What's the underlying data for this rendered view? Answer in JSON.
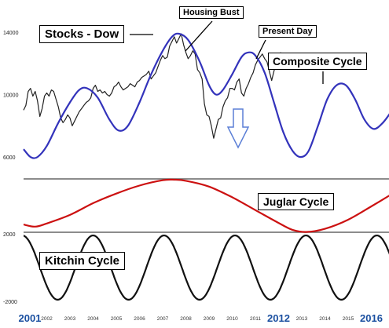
{
  "chart_data": {
    "type": "line",
    "x_tick_labels": [
      "2001",
      "2002",
      "2003",
      "2004",
      "2005",
      "2006",
      "2007",
      "2008",
      "2009",
      "2010",
      "2011",
      "2012",
      "2013",
      "2014",
      "2015",
      "2016"
    ],
    "x_tick_emphasis": {
      "2001": true,
      "2012": true,
      "2016": true
    },
    "panels": [
      {
        "id": "top",
        "y_tick_labels": [
          "14000",
          "10000",
          "6000"
        ],
        "y_ticks": [
          14000,
          10000,
          6000
        ],
        "ylim": [
          5400,
          14300
        ],
        "series": [
          {
            "name": "Stocks - Dow",
            "color": "#222222",
            "points": [
              [
                2001.0,
                9000
              ],
              [
                2001.1,
                9300
              ],
              [
                2001.2,
                10200
              ],
              [
                2001.3,
                10400
              ],
              [
                2001.4,
                9900
              ],
              [
                2001.5,
                10200
              ],
              [
                2001.6,
                9600
              ],
              [
                2001.7,
                8600
              ],
              [
                2001.8,
                9100
              ],
              [
                2001.9,
                9900
              ],
              [
                2002.0,
                10100
              ],
              [
                2002.1,
                9900
              ],
              [
                2002.2,
                10300
              ],
              [
                2002.3,
                10200
              ],
              [
                2002.4,
                9700
              ],
              [
                2002.5,
                9200
              ],
              [
                2002.6,
                8500
              ],
              [
                2002.7,
                8200
              ],
              [
                2002.8,
                8400
              ],
              [
                2002.9,
                8700
              ],
              [
                2003.0,
                8500
              ],
              [
                2003.1,
                8000
              ],
              [
                2003.2,
                8300
              ],
              [
                2003.3,
                8600
              ],
              [
                2003.4,
                8900
              ],
              [
                2003.5,
                9100
              ],
              [
                2003.6,
                9300
              ],
              [
                2003.7,
                9500
              ],
              [
                2003.8,
                9600
              ],
              [
                2003.9,
                9800
              ],
              [
                2004.0,
                10400
              ],
              [
                2004.1,
                10600
              ],
              [
                2004.2,
                10200
              ],
              [
                2004.3,
                10300
              ],
              [
                2004.4,
                10100
              ],
              [
                2004.5,
                10200
              ],
              [
                2004.6,
                10000
              ],
              [
                2004.7,
                9900
              ],
              [
                2004.8,
                10100
              ],
              [
                2004.9,
                10500
              ],
              [
                2005.0,
                10600
              ],
              [
                2005.1,
                10800
              ],
              [
                2005.2,
                10500
              ],
              [
                2005.3,
                10300
              ],
              [
                2005.4,
                10400
              ],
              [
                2005.5,
                10500
              ],
              [
                2005.6,
                10700
              ],
              [
                2005.7,
                10600
              ],
              [
                2005.8,
                10500
              ],
              [
                2005.9,
                10800
              ],
              [
                2006.0,
                10900
              ],
              [
                2006.1,
                11100
              ],
              [
                2006.2,
                11200
              ],
              [
                2006.3,
                11300
              ],
              [
                2006.4,
                11500
              ],
              [
                2006.5,
                11000
              ],
              [
                2006.6,
                11200
              ],
              [
                2006.7,
                11400
              ],
              [
                2006.8,
                11800
              ],
              [
                2006.9,
                12200
              ],
              [
                2007.0,
                12500
              ],
              [
                2007.1,
                12300
              ],
              [
                2007.2,
                12400
              ],
              [
                2007.3,
                13100
              ],
              [
                2007.4,
                13400
              ],
              [
                2007.5,
                13700
              ],
              [
                2007.6,
                13300
              ],
              [
                2007.7,
                13600
              ],
              [
                2007.8,
                13900
              ],
              [
                2007.9,
                13200
              ],
              [
                2008.0,
                12700
              ],
              [
                2008.1,
                12300
              ],
              [
                2008.2,
                12500
              ],
              [
                2008.3,
                12800
              ],
              [
                2008.4,
                12600
              ],
              [
                2008.5,
                11600
              ],
              [
                2008.6,
                11400
              ],
              [
                2008.7,
                11000
              ],
              [
                2008.8,
                9400
              ],
              [
                2008.9,
                8700
              ],
              [
                2009.0,
                8600
              ],
              [
                2009.1,
                8000
              ],
              [
                2009.2,
                7200
              ],
              [
                2009.3,
                7800
              ],
              [
                2009.4,
                8400
              ],
              [
                2009.5,
                8500
              ],
              [
                2009.6,
                9200
              ],
              [
                2009.7,
                9600
              ],
              [
                2009.8,
                9800
              ],
              [
                2009.9,
                10400
              ],
              [
                2010.0,
                10400
              ],
              [
                2010.1,
                10300
              ],
              [
                2010.2,
                10800
              ],
              [
                2010.3,
                11000
              ],
              [
                2010.4,
                10100
              ],
              [
                2010.5,
                9900
              ],
              [
                2010.6,
                10400
              ],
              [
                2010.7,
                10700
              ],
              [
                2010.8,
                11100
              ],
              [
                2010.9,
                11400
              ],
              [
                2011.0,
                11900
              ],
              [
                2011.1,
                12200
              ],
              [
                2011.2,
                12400
              ],
              [
                2011.3,
                12600
              ],
              [
                2011.4,
                12300
              ],
              [
                2011.5,
                12100
              ],
              [
                2011.6,
                11500
              ],
              [
                2011.7,
                10900
              ],
              [
                2011.8,
                11500
              ],
              [
                2011.9,
                12000
              ],
              [
                2012.0,
                12400
              ],
              [
                2012.1,
                12700
              ]
            ]
          },
          {
            "name": "Composite Cycle",
            "color": "#3333bb",
            "points": [
              [
                2001.0,
                6500
              ],
              [
                2001.3,
                6000
              ],
              [
                2001.6,
                6000
              ],
              [
                2002.0,
                6700
              ],
              [
                2002.5,
                8200
              ],
              [
                2003.0,
                9500
              ],
              [
                2003.4,
                10300
              ],
              [
                2003.75,
                10400
              ],
              [
                2004.2,
                9800
              ],
              [
                2004.7,
                8400
              ],
              [
                2005.1,
                7700
              ],
              [
                2005.5,
                8000
              ],
              [
                2006.0,
                9500
              ],
              [
                2006.5,
                11300
              ],
              [
                2007.0,
                12800
              ],
              [
                2007.4,
                13700
              ],
              [
                2007.7,
                13900
              ],
              [
                2008.1,
                13500
              ],
              [
                2008.6,
                12100
              ],
              [
                2009.0,
                10600
              ],
              [
                2009.3,
                10000
              ],
              [
                2009.6,
                10300
              ],
              [
                2010.0,
                11300
              ],
              [
                2010.4,
                12400
              ],
              [
                2010.7,
                12700
              ],
              [
                2011.0,
                12500
              ],
              [
                2011.4,
                11400
              ],
              [
                2011.8,
                9500
              ],
              [
                2012.2,
                7600
              ],
              [
                2012.6,
                6400
              ],
              [
                2012.95,
                6000
              ],
              [
                2013.3,
                6400
              ],
              [
                2013.7,
                8000
              ],
              [
                2014.1,
                9700
              ],
              [
                2014.5,
                10600
              ],
              [
                2014.9,
                10600
              ],
              [
                2015.3,
                9700
              ],
              [
                2015.7,
                8400
              ],
              [
                2016.1,
                7800
              ],
              [
                2016.5,
                8200
              ],
              [
                2016.9,
                9000
              ]
            ]
          }
        ]
      },
      {
        "id": "middle",
        "series": [
          {
            "name": "Juglar Cycle",
            "color": "#cc1111",
            "points": [
              [
                2001.0,
                0.16
              ],
              [
                2001.5,
                0.12
              ],
              [
                2002.0,
                0.18
              ],
              [
                2003.0,
                0.34
              ],
              [
                2004.0,
                0.56
              ],
              [
                2005.0,
                0.74
              ],
              [
                2006.0,
                0.89
              ],
              [
                2007.0,
                0.99
              ],
              [
                2007.5,
                1.0
              ],
              [
                2008.0,
                0.98
              ],
              [
                2009.0,
                0.87
              ],
              [
                2010.0,
                0.67
              ],
              [
                2011.0,
                0.43
              ],
              [
                2012.0,
                0.19
              ],
              [
                2012.6,
                0.06
              ],
              [
                2013.2,
                0.02
              ],
              [
                2014.0,
                0.08
              ],
              [
                2015.0,
                0.25
              ],
              [
                2016.0,
                0.5
              ],
              [
                2017.0,
                0.76
              ]
            ]
          }
        ]
      },
      {
        "id": "bottom",
        "y_tick_labels": [
          "2000",
          "-2000"
        ],
        "y_ticks": [
          2000,
          -2000
        ],
        "ylim": [
          -2000,
          2000
        ],
        "series": [
          {
            "name": "Kitchin Cycle",
            "color": "#111111",
            "formula": "sine",
            "period_years": 3.06,
            "peak_at": 2004.0,
            "amplitude": 1950,
            "x_range": [
              2001.0,
              2016.95
            ]
          }
        ]
      }
    ]
  },
  "annotations": {
    "stocks_dow": "Stocks - Dow",
    "housing_bust": "Housing Bust",
    "present_day": "Present Day",
    "composite_cycle": "Composite Cycle",
    "juglar_cycle": "Juglar Cycle",
    "kitchin_cycle": "Kitchin Cycle"
  },
  "colors": {
    "blue_line": "#3333bb",
    "red_line": "#cc1111",
    "black_line": "#111111",
    "tick_label_blue": "#1a4fa0",
    "separator": "#666666",
    "down_arrow": "#5b7fd6"
  }
}
